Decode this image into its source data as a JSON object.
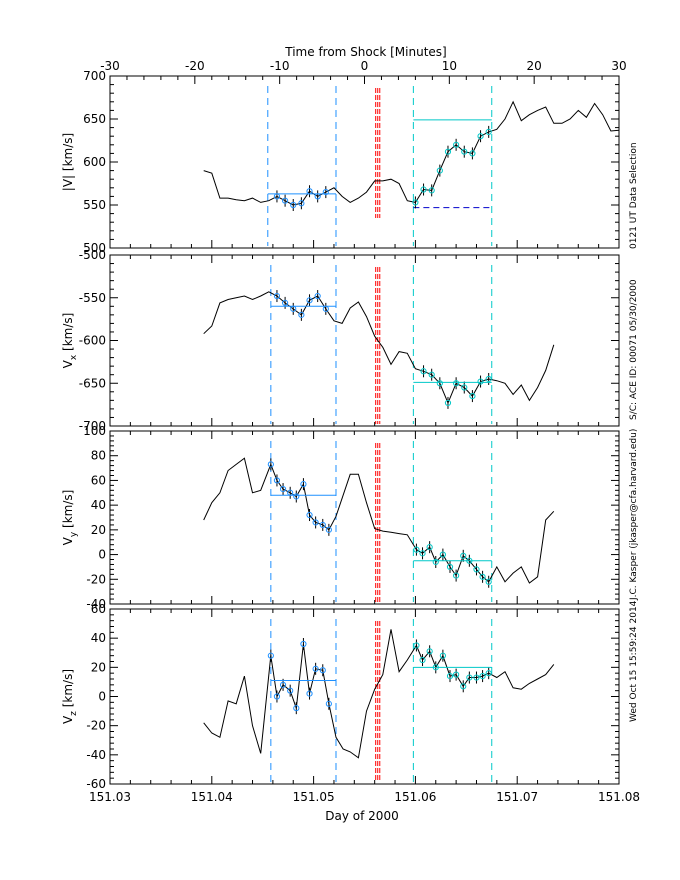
{
  "chart_data": {
    "type": "line",
    "title": "",
    "top_axis": {
      "label": "Time from Shock [Minutes]",
      "range": [
        -30,
        30
      ],
      "ticks": [
        -30,
        -20,
        -10,
        0,
        10,
        20,
        30
      ]
    },
    "x_axis": {
      "label": "Day of 2000",
      "range": [
        151.03,
        151.08
      ],
      "ticks": [
        "151.03",
        "151.04",
        "151.05",
        "151.06",
        "151.07",
        "151.08"
      ],
      "tick_values": [
        151.03,
        151.04,
        151.05,
        151.06,
        151.07,
        151.08
      ]
    },
    "side_text": [
      "0121 UT Data Selection",
      "S/C: ACE ID: 00071 05/30/2000",
      "J.C. Kasper (jkasper@cfa.harvard.edu)",
      "Wed Oct 15 15:59:24 2014"
    ],
    "colors": {
      "trace": "#000000",
      "upstream": "#1e90ff",
      "downstream": "#00c8c8",
      "shock": "#ff0000",
      "reference": "#0000cc"
    },
    "panels": [
      {
        "id": "speed",
        "ylabel": "|V| [km/s]",
        "ylim": [
          500,
          700
        ],
        "yticks": [
          500,
          550,
          600,
          650,
          700
        ],
        "x": [
          151.0392,
          151.04,
          151.0408,
          151.0416,
          151.0424,
          151.0432,
          151.044,
          151.0448,
          151.0456,
          151.0464,
          151.0472,
          151.048,
          151.0488,
          151.0496,
          151.0504,
          151.0512,
          151.052,
          151.0528,
          151.0536,
          151.0544,
          151.0552,
          151.056,
          151.0568,
          151.0576,
          151.0584,
          151.0592,
          151.06,
          151.0608,
          151.0616,
          151.0624,
          151.0632,
          151.064,
          151.0648,
          151.0656,
          151.0664,
          151.0672,
          151.068,
          151.0688,
          151.0696,
          151.0704,
          151.0712,
          151.072,
          151.0728,
          151.0736,
          151.0744,
          151.0752,
          151.076,
          151.0768,
          151.0776,
          151.0784,
          151.0792,
          151.08
        ],
        "values": [
          590,
          587,
          558,
          558,
          556,
          555,
          558,
          553,
          555,
          560,
          555,
          550,
          552,
          566,
          560,
          565,
          570,
          560,
          553,
          558,
          565,
          578,
          578,
          580,
          575,
          555,
          553,
          568,
          567,
          590,
          612,
          620,
          612,
          610,
          630,
          635,
          638,
          650,
          670,
          648,
          655,
          660,
          664,
          645,
          645,
          650,
          660,
          652,
          668,
          655,
          636,
          637
        ],
        "upstream": {
          "x0": 151.0455,
          "x1": 151.0522,
          "level": 563,
          "marker_start": 151.0458,
          "marker_end": 151.0515
        },
        "downstream": {
          "x0": 151.0598,
          "x1": 151.0675,
          "level": 649,
          "marker_start": 151.0598,
          "marker_end": 151.0672
        },
        "shock_x": [
          151.0561,
          151.0563,
          151.0565
        ],
        "reference_level": 547
      },
      {
        "id": "vx",
        "ylabel": "Vx [km/s]",
        "ylim": [
          -700,
          -500
        ],
        "yticks": [
          -700,
          -650,
          -600,
          -550,
          -500
        ],
        "x": [
          151.0392,
          151.04,
          151.0408,
          151.0416,
          151.0424,
          151.0432,
          151.044,
          151.0448,
          151.0456,
          151.0464,
          151.0472,
          151.048,
          151.0488,
          151.0496,
          151.0504,
          151.0512,
          151.052,
          151.0528,
          151.0536,
          151.0544,
          151.0552,
          151.056,
          151.0568,
          151.0576,
          151.0584,
          151.0592,
          151.06,
          151.0608,
          151.0616,
          151.0624,
          151.0632,
          151.064,
          151.0648,
          151.0656,
          151.0664,
          151.0672,
          151.068,
          151.0688,
          151.0696,
          151.0704,
          151.0712,
          151.072,
          151.0728,
          151.0736
        ],
        "values": [
          -592,
          -583,
          -556,
          -552,
          -550,
          -548,
          -552,
          -548,
          -543,
          -548,
          -556,
          -563,
          -570,
          -553,
          -548,
          -563,
          -577,
          -580,
          -562,
          -555,
          -572,
          -595,
          -608,
          -628,
          -613,
          -615,
          -633,
          -636,
          -640,
          -650,
          -673,
          -650,
          -655,
          -665,
          -648,
          -645,
          -647,
          -650,
          -663,
          -652,
          -670,
          -655,
          -635,
          -605
        ],
        "upstream": {
          "x0": 151.0458,
          "x1": 151.0522,
          "level": -560,
          "marker_start": 151.0458,
          "marker_end": 151.0519
        },
        "downstream": {
          "x0": 151.0598,
          "x1": 151.0675,
          "level": -649,
          "marker_start": 151.0601,
          "marker_end": 151.0672
        },
        "shock_x": [
          151.0561,
          151.0563,
          151.0565
        ]
      },
      {
        "id": "vy",
        "ylabel": "Vy [km/s]",
        "ylim": [
          -40,
          100
        ],
        "yticks": [
          -40,
          -20,
          0,
          20,
          40,
          60,
          80,
          100
        ],
        "x": [
          151.0392,
          151.04,
          151.0408,
          151.0416,
          151.0424,
          151.0432,
          151.044,
          151.0448,
          151.0458,
          151.0464,
          151.047,
          151.0477,
          151.0483,
          151.049,
          151.0496,
          151.0502,
          151.0509,
          151.0515,
          151.0522,
          151.0529,
          151.0536,
          151.0544,
          151.0552,
          151.056,
          151.0568,
          151.0576,
          151.0584,
          151.0592,
          151.0601,
          151.0607,
          151.0614,
          151.062,
          151.0627,
          151.0634,
          151.064,
          151.0647,
          151.0653,
          151.066,
          151.0666,
          151.0672,
          151.068,
          151.0688,
          151.0696,
          151.0704,
          151.0712,
          151.072,
          151.0728,
          151.0736
        ],
        "values": [
          28,
          42,
          50,
          68,
          73,
          78,
          50,
          52,
          73,
          60,
          53,
          50,
          47,
          57,
          32,
          26,
          24,
          20,
          31,
          48,
          65,
          65,
          42,
          21,
          19,
          18,
          17,
          16,
          4,
          1,
          6,
          -6,
          0,
          -10,
          -17,
          -1,
          -5,
          -12,
          -18,
          -22,
          -10,
          -22,
          -15,
          -10,
          -23,
          -18,
          28,
          35
        ],
        "upstream": {
          "x0": 151.0458,
          "x1": 151.0522,
          "level": 48,
          "marker_start": 151.0458,
          "marker_end": 151.0515
        },
        "downstream": {
          "x0": 151.0598,
          "x1": 151.0675,
          "level": -5,
          "marker_start": 151.0601,
          "marker_end": 151.0672
        },
        "shock_x": [
          151.0561,
          151.0563,
          151.0565
        ]
      },
      {
        "id": "vz",
        "ylabel": "Vz [km/s]",
        "ylim": [
          -60,
          60
        ],
        "yticks": [
          -60,
          -40,
          -20,
          0,
          20,
          40,
          60
        ],
        "x": [
          151.0392,
          151.04,
          151.0408,
          151.0416,
          151.0424,
          151.0432,
          151.044,
          151.0448,
          151.0458,
          151.0464,
          151.047,
          151.0477,
          151.0483,
          151.049,
          151.0496,
          151.0502,
          151.0509,
          151.0515,
          151.0522,
          151.0529,
          151.0536,
          151.0544,
          151.0552,
          151.056,
          151.0568,
          151.0576,
          151.0584,
          151.0592,
          151.0601,
          151.0607,
          151.0614,
          151.062,
          151.0627,
          151.0634,
          151.064,
          151.0647,
          151.0653,
          151.066,
          151.0666,
          151.0672,
          151.068,
          151.0688,
          151.0696,
          151.0704,
          151.0712,
          151.072,
          151.0728,
          151.0736
        ],
        "values": [
          -18,
          -25,
          -28,
          -3,
          -5,
          14,
          -20,
          -39,
          28,
          0,
          8,
          4,
          -8,
          36,
          2,
          19,
          18,
          -5,
          -28,
          -36,
          -38,
          -42,
          -10,
          5,
          15,
          46,
          17,
          25,
          35,
          25,
          31,
          20,
          28,
          14,
          15,
          7,
          13,
          13,
          14,
          16,
          13,
          17,
          6,
          5,
          9,
          12,
          15,
          22
        ],
        "upstream": {
          "x0": 151.0458,
          "x1": 151.0522,
          "level": 11,
          "marker_start": 151.0458,
          "marker_end": 151.0515
        },
        "downstream": {
          "x0": 151.0598,
          "x1": 151.0675,
          "level": 20,
          "marker_start": 151.0601,
          "marker_end": 151.0672
        },
        "shock_x": [
          151.0561,
          151.0563,
          151.0565
        ]
      }
    ]
  }
}
